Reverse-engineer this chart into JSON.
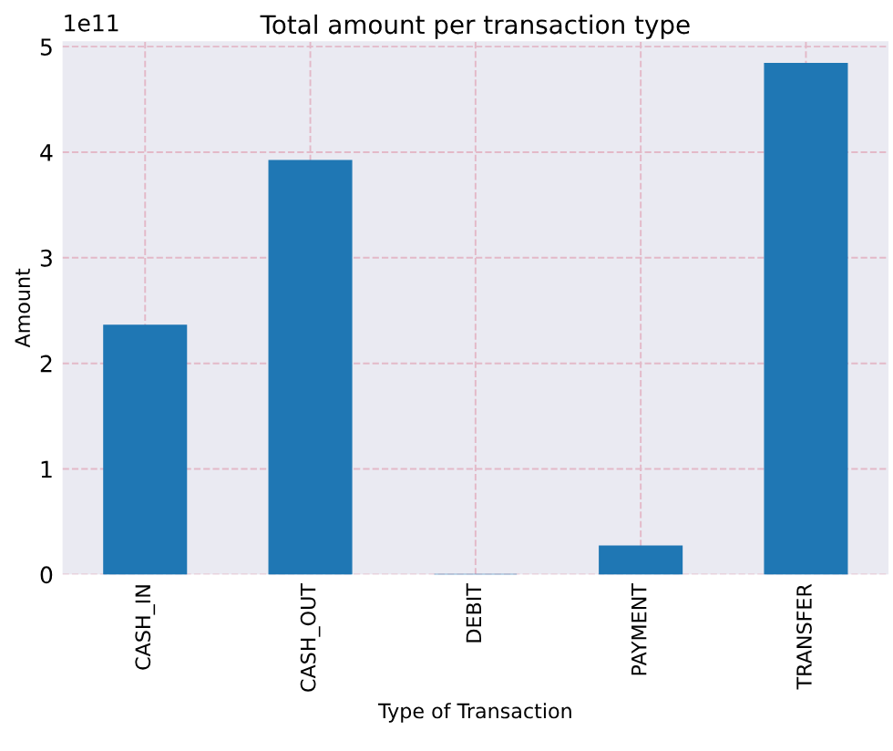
{
  "chart_data": {
    "type": "bar",
    "title": "Total amount per transaction type",
    "xlabel": "Type of Transaction",
    "ylabel": "Amount",
    "categories": [
      "CASH_IN",
      "CASH_OUT",
      "DEBIT",
      "PAYMENT",
      "TRANSFER"
    ],
    "values": [
      2.36,
      3.92,
      0.0,
      0.27,
      4.84
    ],
    "color": "#1f77b4",
    "ylim": [
      0,
      5.05
    ],
    "yticks": [
      0,
      1,
      2,
      3,
      4,
      5
    ],
    "annotations": [
      "1e11"
    ],
    "grid": true
  }
}
